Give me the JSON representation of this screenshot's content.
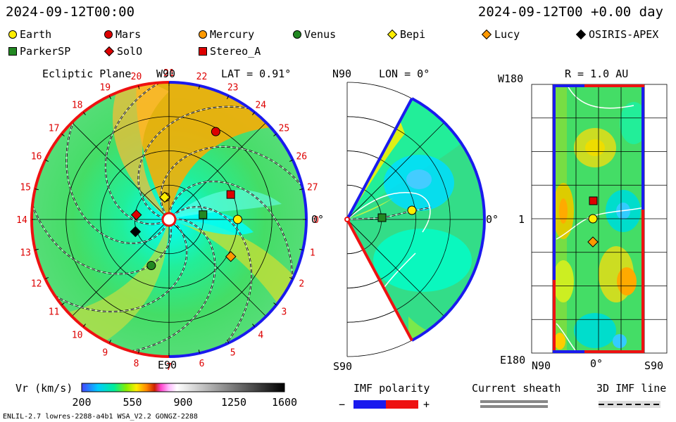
{
  "header": {
    "datetime_left": "2024-09-12T00:00",
    "datetime_right": "2024-09-12T00 +0.00 day"
  },
  "legend": [
    {
      "name": "Earth",
      "marker": "circle",
      "color": "#ffee00"
    },
    {
      "name": "Mars",
      "marker": "circle",
      "color": "#dd0000"
    },
    {
      "name": "Mercury",
      "marker": "circle",
      "color": "#ff9900"
    },
    {
      "name": "Venus",
      "marker": "circle",
      "color": "#228822"
    },
    {
      "name": "Bepi",
      "marker": "diamond",
      "color": "#ffee00"
    },
    {
      "name": "Lucy",
      "marker": "diamond",
      "color": "#ff9900"
    },
    {
      "name": "OSIRIS-APEX",
      "marker": "diamond",
      "color": "#000000"
    },
    {
      "name": "ParkerSP",
      "marker": "square",
      "color": "#228822"
    },
    {
      "name": "SolO",
      "marker": "diamond",
      "color": "#dd0000"
    },
    {
      "name": "Stereo_A",
      "marker": "square",
      "color": "#dd0000"
    }
  ],
  "panels": {
    "ecliptic": {
      "title": "Ecliptic Plane",
      "lat_label": "LAT = 0.91°",
      "top_label": "W90",
      "bottom_label": "E90",
      "right_label": "0°",
      "carrington_ticks": [
        "0",
        "1",
        "2",
        "3",
        "4",
        "5",
        "6",
        "7",
        "8",
        "9",
        "10",
        "11",
        "12",
        "13",
        "14",
        "15",
        "16",
        "17",
        "18",
        "19",
        "20",
        "21",
        "22",
        "23",
        "24",
        "25",
        "26",
        "27"
      ]
    },
    "meridional": {
      "lon_label": "LON = 0°",
      "top_label": "N90",
      "bottom_label": "S90",
      "right_label": "0°"
    },
    "map": {
      "r_label": "R = 1.0 AU",
      "top_label": "W180",
      "bottom_label": "E180",
      "mid_label": "1",
      "x_left": "N90",
      "x_mid": "0°",
      "x_right": "S90"
    }
  },
  "chart_data": {
    "type": "heatmap",
    "quantity": "Vr (km/s)",
    "colorbar": {
      "label": "Vr (km/s)",
      "ticks": [
        "200",
        "550",
        "900",
        "1250",
        "1600"
      ],
      "range": [
        200,
        1600
      ]
    },
    "bodies_ecliptic": [
      {
        "name": "Earth",
        "r_au": 1.0,
        "lon_deg": 0
      },
      {
        "name": "Mars",
        "r_au": 1.45,
        "lon_deg": 62
      },
      {
        "name": "Mercury",
        "r_au": 0.33,
        "lon_deg": 99
      },
      {
        "name": "Venus",
        "r_au": 0.72,
        "lon_deg": 249
      },
      {
        "name": "Bepi",
        "r_au": 0.33,
        "lon_deg": 101
      },
      {
        "name": "Lucy",
        "r_au": 1.05,
        "lon_deg": 329
      },
      {
        "name": "OSIRIS-APEX",
        "r_au": 0.52,
        "lon_deg": 200
      },
      {
        "name": "ParkerSP",
        "r_au": 0.5,
        "lon_deg": 8
      },
      {
        "name": "SolO",
        "r_au": 0.48,
        "lon_deg": 172
      },
      {
        "name": "Stereo_A",
        "r_au": 0.97,
        "lon_deg": 22
      }
    ]
  },
  "footer": {
    "imf_title": "IMF polarity",
    "imf_minus": "−",
    "imf_plus": "+",
    "sheath_title": "Current sheath",
    "imf_line_title": "3D IMF line",
    "model_info": "ENLIL-2.7 lowres-2288-a4b1 WSA_V2.2 GONGZ-2288"
  }
}
